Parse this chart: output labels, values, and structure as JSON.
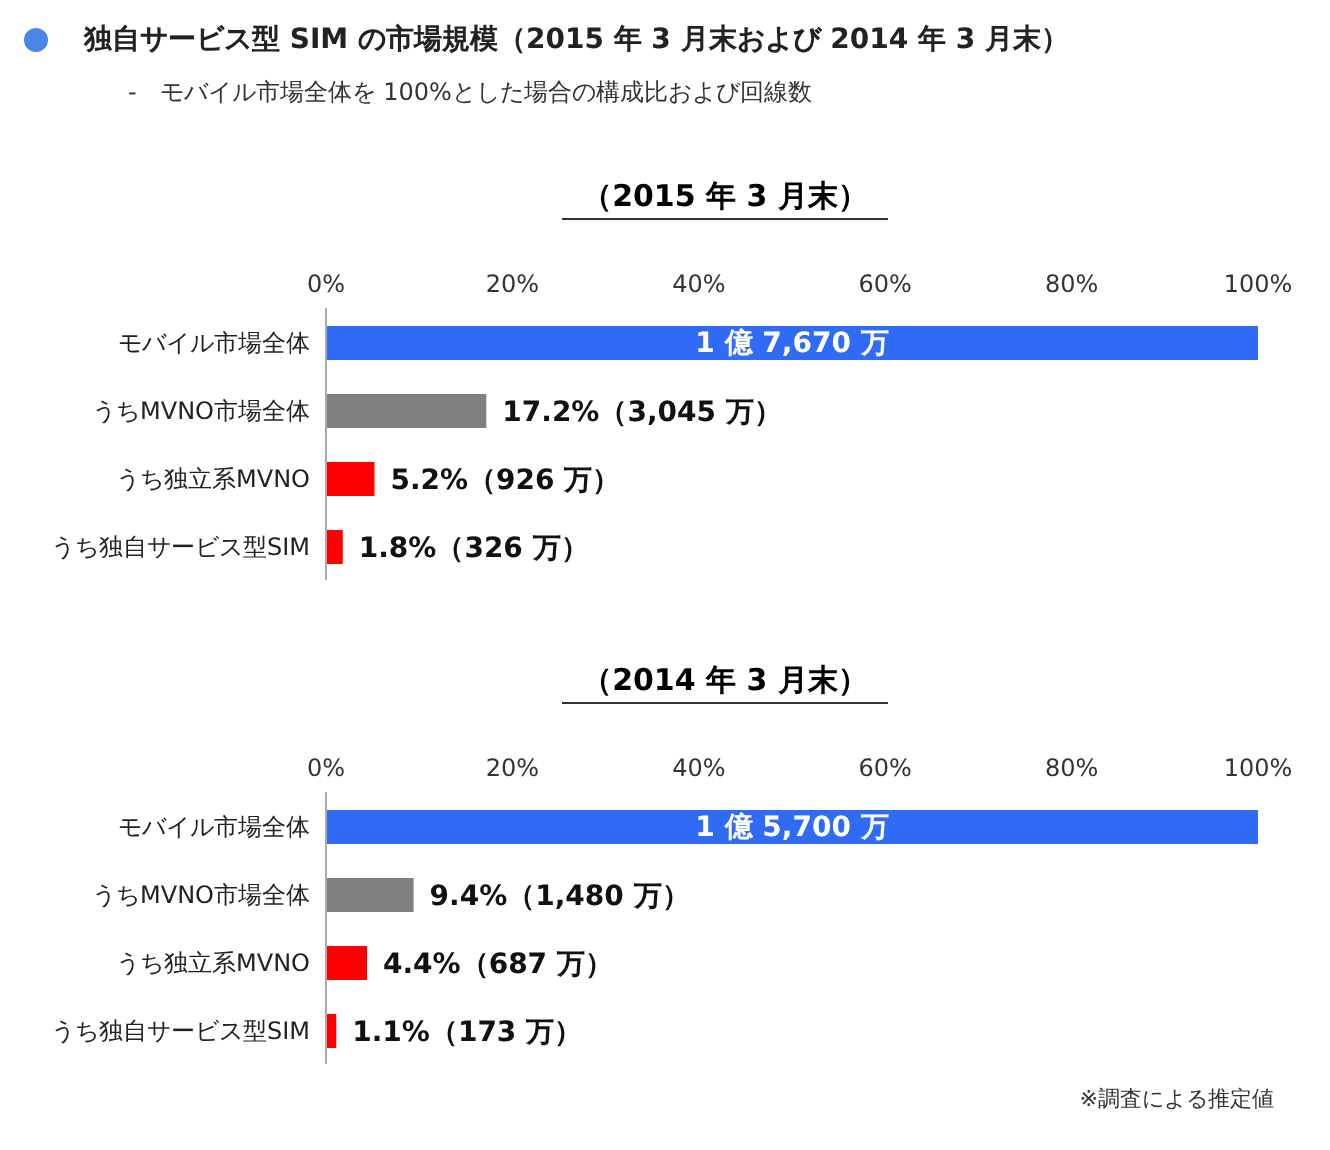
{
  "chart_data": [
    {
      "type": "bar",
      "orientation": "horizontal",
      "title": "（2015 年 3 月末）",
      "annotations": [
        "独自サービス型 SIM の市場規模（2015 年 3 月末および 2014 年 3 月末）",
        "-   モバイル市場全体を 100%とした場合の構成比および回線数",
        "1 億 7,670 万"
      ],
      "categories": [
        "モバイル市場全体",
        "うちMVNO市場全体",
        "うち独立系MVNO",
        "うち独自サービス型SIM"
      ],
      "values": [
        100,
        17.2,
        5.2,
        1.8
      ],
      "colors": [
        "#2f6bf5",
        "#808080",
        "#ff0000",
        "#ff0000"
      ],
      "value_labels": [
        null,
        "17.2%（3,045 万）",
        "5.2%（926 万）",
        "1.8%（326 万）"
      ],
      "xlim": [
        0,
        100
      ],
      "xticks": [
        {
          "value": 0,
          "label": "0%"
        },
        {
          "value": 20,
          "label": "20%"
        },
        {
          "value": 40,
          "label": "40%"
        },
        {
          "value": 60,
          "label": "60%"
        },
        {
          "value": 80,
          "label": "80%"
        },
        {
          "value": 100,
          "label": "100%"
        }
      ],
      "grid": false
    },
    {
      "type": "bar",
      "orientation": "horizontal",
      "title": "（2014 年 3 月末）",
      "annotations": [
        "1 億 5,700 万",
        "※調査による推定値"
      ],
      "categories": [
        "モバイル市場全体",
        "うちMVNO市場全体",
        "うち独立系MVNO",
        "うち独自サービス型SIM"
      ],
      "values": [
        100,
        9.4,
        4.4,
        1.1
      ],
      "colors": [
        "#2f6bf5",
        "#808080",
        "#ff0000",
        "#ff0000"
      ],
      "value_labels": [
        null,
        "9.4%（1,480 万）",
        "4.4%（687 万）",
        "1.1%（173 万）"
      ],
      "xlim": [
        0,
        100
      ],
      "xticks": [
        {
          "value": 0,
          "label": "0%"
        },
        {
          "value": 20,
          "label": "20%"
        },
        {
          "value": 40,
          "label": "40%"
        },
        {
          "value": 60,
          "label": "60%"
        },
        {
          "value": 80,
          "label": "80%"
        },
        {
          "value": 100,
          "label": "100%"
        }
      ],
      "grid": false
    }
  ]
}
